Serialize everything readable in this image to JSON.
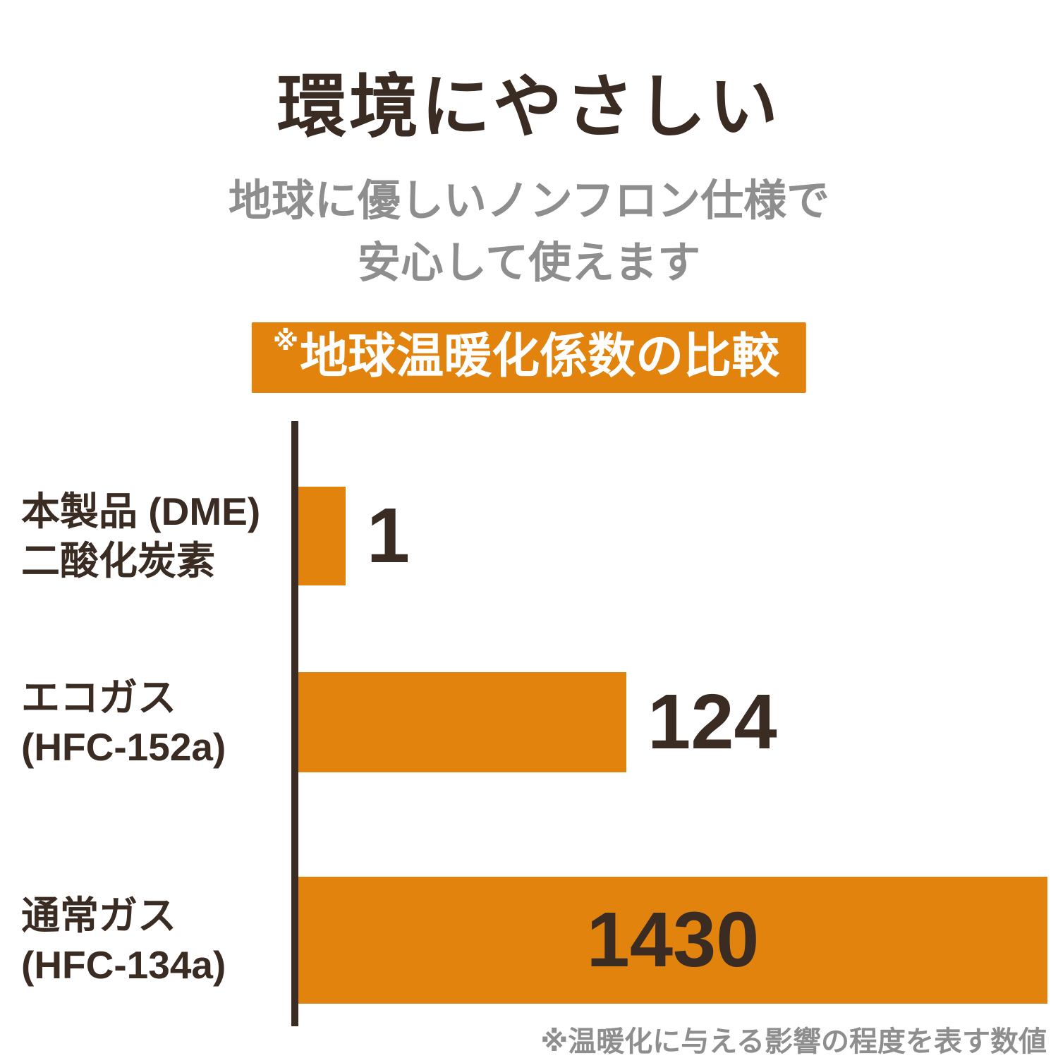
{
  "header": {
    "title": "環境にやさしい",
    "subtitle_line1": "地球に優しいノンフロン仕様で",
    "subtitle_line2": "安心して使えます"
  },
  "banner": {
    "mark": "※",
    "title": "地球温暖化係数の比較"
  },
  "footnote": "※温暖化に与える影響の程度を表す数値",
  "colors": {
    "accent_orange": "#e2830e",
    "text_dark_brown": "#3a2b23",
    "text_gray": "#8e8e8e",
    "background": "#ffffff"
  },
  "chart_data": {
    "type": "bar",
    "orientation": "horizontal",
    "title": "※地球温暖化係数の比較",
    "categories": [
      "本製品 (DME) 二酸化炭素",
      "エコガス (HFC-152a)",
      "通常ガス (HFC-134a)"
    ],
    "values": [
      1,
      124,
      1430
    ],
    "bar_color": "#e2830e",
    "xlim": [
      0,
      1430
    ],
    "grid": false,
    "legend": false,
    "note": "※温暖化に与える影響の程度を表す数値",
    "rows": [
      {
        "label_line1": "本製品 (DME)",
        "label_line2": "二酸化炭素",
        "value": "1",
        "width_pct": 6.3,
        "value_position": "right-of-bar"
      },
      {
        "label_line1": "エコガス",
        "label_line2": "(HFC-152a)",
        "value": "124",
        "width_pct": 43.8,
        "value_position": "right-of-bar"
      },
      {
        "label_line1": "通常ガス",
        "label_line2": "(HFC-134a)",
        "value": "1430",
        "width_pct": 100,
        "value_position": "inside-bar"
      }
    ]
  }
}
